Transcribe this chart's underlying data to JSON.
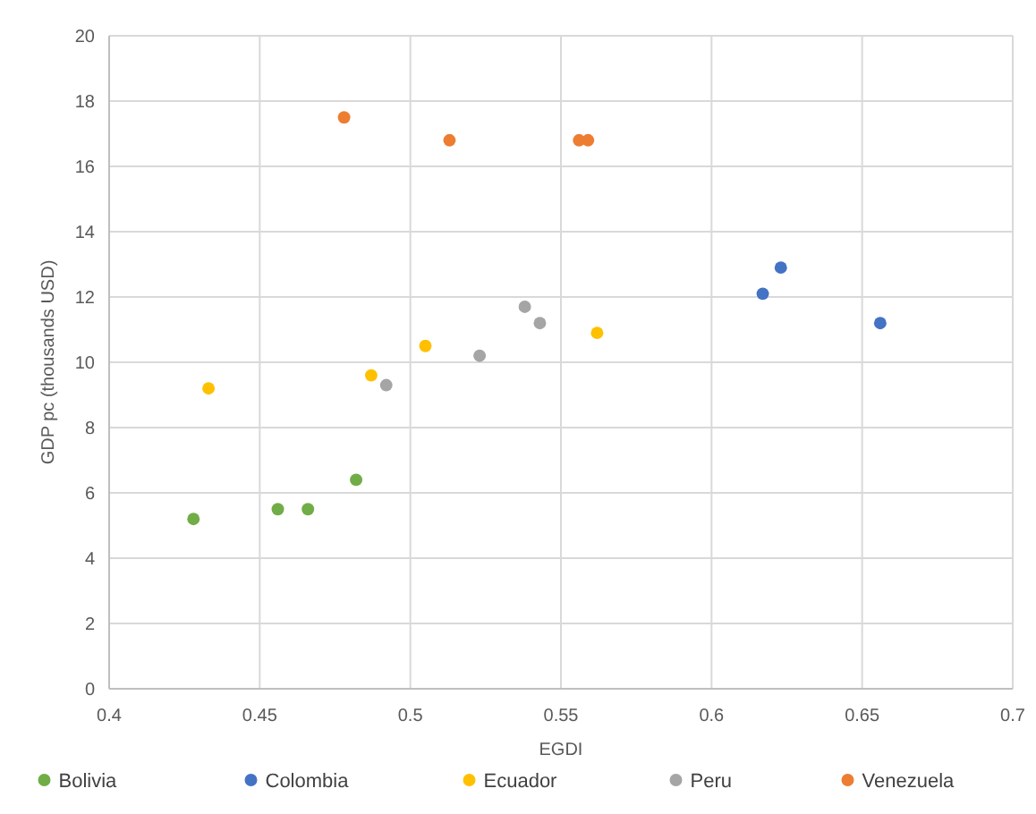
{
  "chart_data": {
    "type": "scatter",
    "xlabel": "EGDI",
    "ylabel": "GDP pc (thousands USD)",
    "xlim": [
      0.4,
      0.7
    ],
    "xticks": [
      0.4,
      0.45,
      0.5,
      0.55,
      0.6,
      0.65,
      0.7
    ],
    "ylim": [
      0,
      20
    ],
    "yticks": [
      0,
      2,
      4,
      6,
      8,
      10,
      12,
      14,
      16,
      18,
      20
    ],
    "grid": true,
    "legend": "bottom",
    "marker": "circle",
    "series": [
      {
        "name": "Bolivia",
        "color": "#70ad47",
        "x": [
          0.428,
          0.456,
          0.466,
          0.482
        ],
        "values": [
          5.2,
          5.5,
          5.5,
          6.4
        ]
      },
      {
        "name": "Colombia",
        "color": "#4472c4",
        "x": [
          0.617,
          0.623,
          0.656
        ],
        "values": [
          12.1,
          12.9,
          11.2
        ]
      },
      {
        "name": "Ecuador",
        "color": "#ffc000",
        "x": [
          0.433,
          0.487,
          0.505,
          0.562
        ],
        "values": [
          9.2,
          9.6,
          10.5,
          10.9
        ]
      },
      {
        "name": "Peru",
        "color": "#a5a5a5",
        "x": [
          0.492,
          0.523,
          0.538,
          0.543
        ],
        "values": [
          9.3,
          10.2,
          11.7,
          11.2
        ]
      },
      {
        "name": "Venezuela",
        "color": "#ed7d31",
        "x": [
          0.478,
          0.513,
          0.556,
          0.559
        ],
        "values": [
          17.5,
          16.8,
          16.8,
          16.8
        ]
      }
    ]
  }
}
